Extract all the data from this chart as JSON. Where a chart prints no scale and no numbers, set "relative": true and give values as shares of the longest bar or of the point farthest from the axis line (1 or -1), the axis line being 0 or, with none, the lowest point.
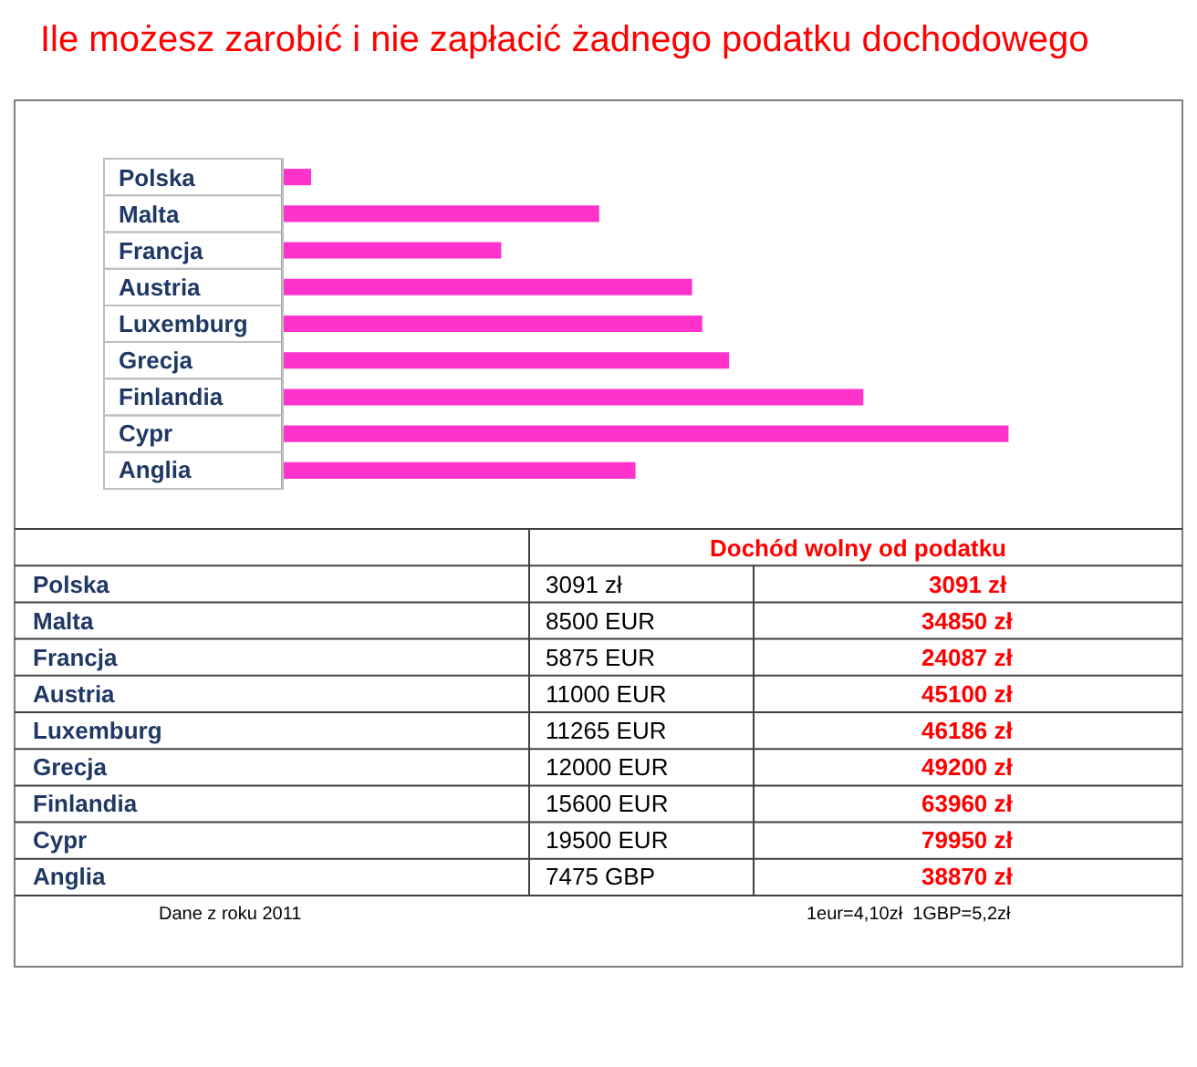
{
  "chart_data": [
    {
      "type": "bar",
      "orientation": "horizontal",
      "relative": true,
      "title": "Ile możesz zarobić i nie zapłacić żadnego podatku dochodowego",
      "categories": [
        "Polska",
        "Malta",
        "Francja",
        "Austria",
        "Luxemburg",
        "Grecja",
        "Finlandia",
        "Cypr",
        "Anglia"
      ],
      "series": [
        {
          "color": "#ff33cc",
          "values": [
            0.039,
            0.436,
            0.301,
            0.564,
            0.578,
            0.615,
            0.8,
            1,
            0.486
          ]
        }
      ]
    },
    {
      "type": "other",
      "categories": [
        "Polska",
        "Malta",
        "Francja",
        "Austria",
        "Luxemburg",
        "Grecja",
        "Finlandia",
        "Cypr",
        "Anglia"
      ],
      "annotations": [
        "Dochód wolny od podatku",
        "3091 zł",
        "3091 zł",
        "8500 EUR",
        "34850 zł",
        "5875 EUR",
        "24087 zł",
        "11000 EUR",
        "45100 zł",
        "11265 EUR",
        "46186 zł",
        "12000 EUR",
        "49200 zł",
        "15600 EUR",
        "63960 zł",
        "19500 EUR",
        "79950 zł",
        "7475 GBP",
        "38870 zł",
        "Dane z roku 2011",
        "1eur=4,10zł  1GBP=5,2zł"
      ]
    }
  ]
}
